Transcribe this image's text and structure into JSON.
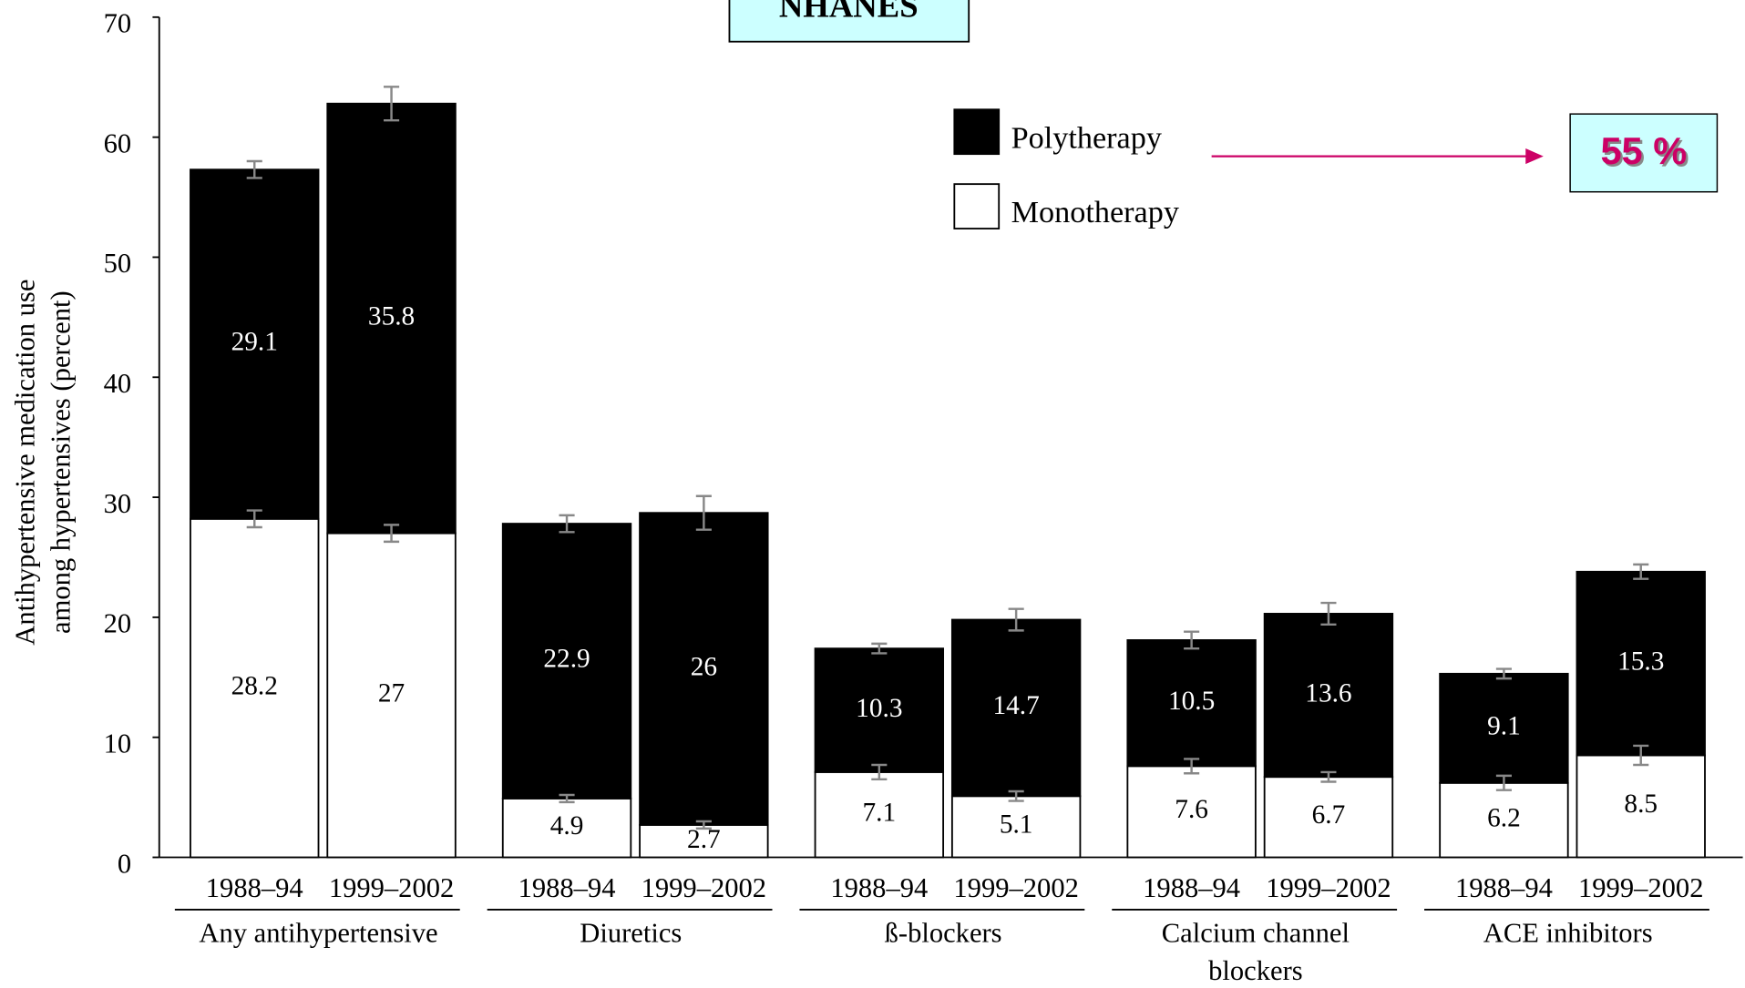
{
  "chart_data": {
    "type": "stacked_bar",
    "title": "NHANES",
    "y_label": [
      "Antihypertensive medication use",
      "among hypertensives (percent)"
    ],
    "groups": [
      {
        "name": "Any antihypertensive",
        "categories": [
          "1988–94",
          "1999–2002"
        ]
      },
      {
        "name": "Diuretics",
        "categories": [
          "1988–94",
          "1999–2002"
        ]
      },
      {
        "name": "ß-blockers",
        "categories": [
          "1988–94",
          "1999–2002"
        ]
      },
      {
        "name": "Calcium channel blockers",
        "categories": [
          "1988–94",
          "1999–2002"
        ]
      },
      {
        "name": "ACE inhibitors",
        "categories": [
          "1988–94",
          "1999–2002"
        ]
      }
    ],
    "series": [
      {
        "name": "Monotherapy",
        "color": "#ffffff",
        "label_color": "#000000",
        "values": [
          28.2,
          27.0,
          4.9,
          2.7,
          7.1,
          5.1,
          7.6,
          6.7,
          6.2,
          8.5
        ],
        "errors": [
          0.7,
          0.7,
          0.3,
          0.3,
          0.6,
          0.4,
          0.6,
          0.4,
          0.6,
          0.8
        ]
      },
      {
        "name": "Polytherapy",
        "color": "#000000",
        "label_color": "#ffffff",
        "values": [
          29.1,
          35.8,
          22.9,
          26.0,
          10.3,
          14.7,
          10.5,
          13.6,
          9.1,
          15.3
        ],
        "errors": [
          0.7,
          1.4,
          0.7,
          1.4,
          0.4,
          0.9,
          0.7,
          0.9,
          0.4,
          0.6
        ]
      }
    ],
    "ylim": [
      0,
      70
    ],
    "yticks": [
      0,
      10,
      20,
      30,
      40,
      50,
      60,
      70
    ],
    "annotation": "55 %"
  }
}
